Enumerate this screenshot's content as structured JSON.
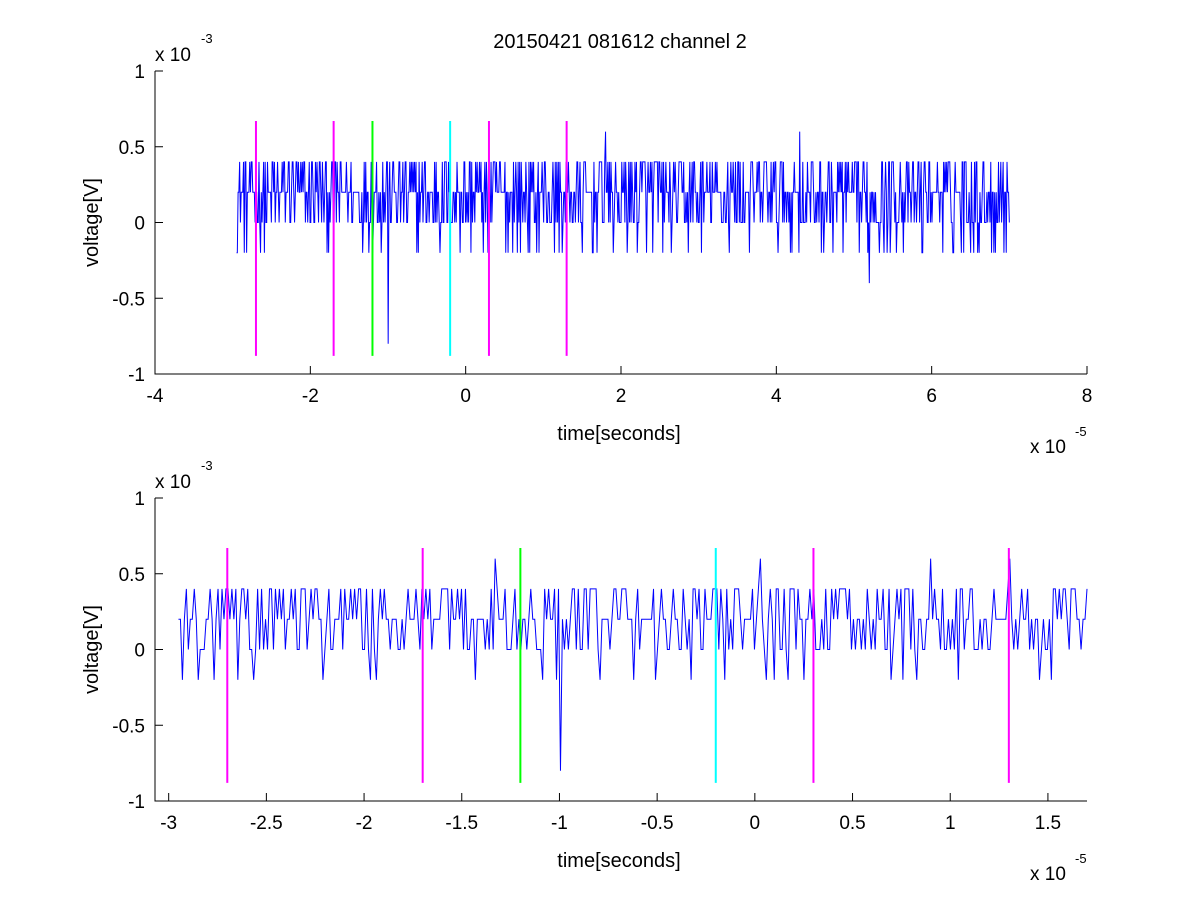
{
  "figure": {
    "title": "20150421 081612 channel 2"
  },
  "chart_data": [
    {
      "type": "line",
      "title": "20150421 081612 channel 2",
      "xlabel": "time[seconds]",
      "ylabel": "voltage[V]",
      "x_exponent_label": "x 10",
      "x_exponent": "-5",
      "y_exponent_label": "x 10",
      "y_exponent": "-3",
      "xlim": [
        -4,
        8
      ],
      "ylim": [
        -1,
        1
      ],
      "xticks": [
        -4,
        -2,
        0,
        2,
        4,
        6,
        8
      ],
      "xtick_labels": [
        "-4",
        "-2",
        "0",
        "2",
        "4",
        "6",
        "8"
      ],
      "yticks": [
        -1,
        -0.5,
        0,
        0.5,
        1
      ],
      "ytick_labels": [
        "-1",
        "-0.5",
        "0",
        "0.5",
        "1"
      ],
      "grid": false,
      "series": [
        {
          "color": "#0000ff",
          "x_range": [
            -2.95,
            7.0
          ],
          "levels": [
            -0.2,
            0.0,
            0.2,
            0.4
          ],
          "notable_points": [
            {
              "x": -1.0,
              "y": -0.8
            },
            {
              "x": 5.2,
              "y": -0.4
            },
            {
              "x": 4.3,
              "y": 0.6
            },
            {
              "x": 1.8,
              "y": 0.6
            }
          ]
        }
      ],
      "markers": [
        {
          "x": -2.7,
          "color": "#ff00ff",
          "ymin": -0.88,
          "ymax": 0.67
        },
        {
          "x": -1.7,
          "color": "#ff00ff",
          "ymin": -0.88,
          "ymax": 0.67
        },
        {
          "x": -1.2,
          "color": "#00ff00",
          "ymin": -0.88,
          "ymax": 0.67
        },
        {
          "x": -0.2,
          "color": "#00ffff",
          "ymin": -0.88,
          "ymax": 0.67
        },
        {
          "x": 0.3,
          "color": "#ff00ff",
          "ymin": -0.88,
          "ymax": 0.67
        },
        {
          "x": 1.3,
          "color": "#ff00ff",
          "ymin": -0.88,
          "ymax": 0.67
        }
      ]
    },
    {
      "type": "line",
      "title": "",
      "xlabel": "time[seconds]",
      "ylabel": "voltage[V]",
      "x_exponent_label": "x 10",
      "x_exponent": "-5",
      "y_exponent_label": "x 10",
      "y_exponent": "-3",
      "xlim": [
        -3.07,
        1.7
      ],
      "ylim": [
        -1,
        1
      ],
      "xticks": [
        -3,
        -2.5,
        -2,
        -1.5,
        -1,
        -0.5,
        0,
        0.5,
        1,
        1.5
      ],
      "xtick_labels": [
        "-3",
        "-2.5",
        "-2",
        "-1.5",
        "-1",
        "-0.5",
        "0",
        "0.5",
        "1",
        "1.5"
      ],
      "yticks": [
        -1,
        -0.5,
        0,
        0.5,
        1
      ],
      "ytick_labels": [
        "-1",
        "-0.5",
        "0",
        "0.5",
        "1"
      ],
      "grid": false,
      "series": [
        {
          "color": "#0000ff",
          "x_range": [
            -2.95,
            1.7
          ],
          "levels": [
            -0.2,
            0.0,
            0.2,
            0.4
          ],
          "notable_points": [
            {
              "x": -0.99,
              "y": -0.8
            },
            {
              "x": -1.33,
              "y": 0.6
            },
            {
              "x": 0.03,
              "y": 0.6
            },
            {
              "x": 0.9,
              "y": 0.6
            },
            {
              "x": 1.3,
              "y": 0.6
            }
          ]
        }
      ],
      "markers": [
        {
          "x": -2.7,
          "color": "#ff00ff",
          "ymin": -0.88,
          "ymax": 0.67
        },
        {
          "x": -1.7,
          "color": "#ff00ff",
          "ymin": -0.88,
          "ymax": 0.67
        },
        {
          "x": -1.2,
          "color": "#00ff00",
          "ymin": -0.88,
          "ymax": 0.67
        },
        {
          "x": -0.2,
          "color": "#00ffff",
          "ymin": -0.88,
          "ymax": 0.67
        },
        {
          "x": 0.3,
          "color": "#ff00ff",
          "ymin": -0.88,
          "ymax": 0.67
        },
        {
          "x": 1.3,
          "color": "#ff00ff",
          "ymin": -0.88,
          "ymax": 0.67
        }
      ]
    }
  ]
}
